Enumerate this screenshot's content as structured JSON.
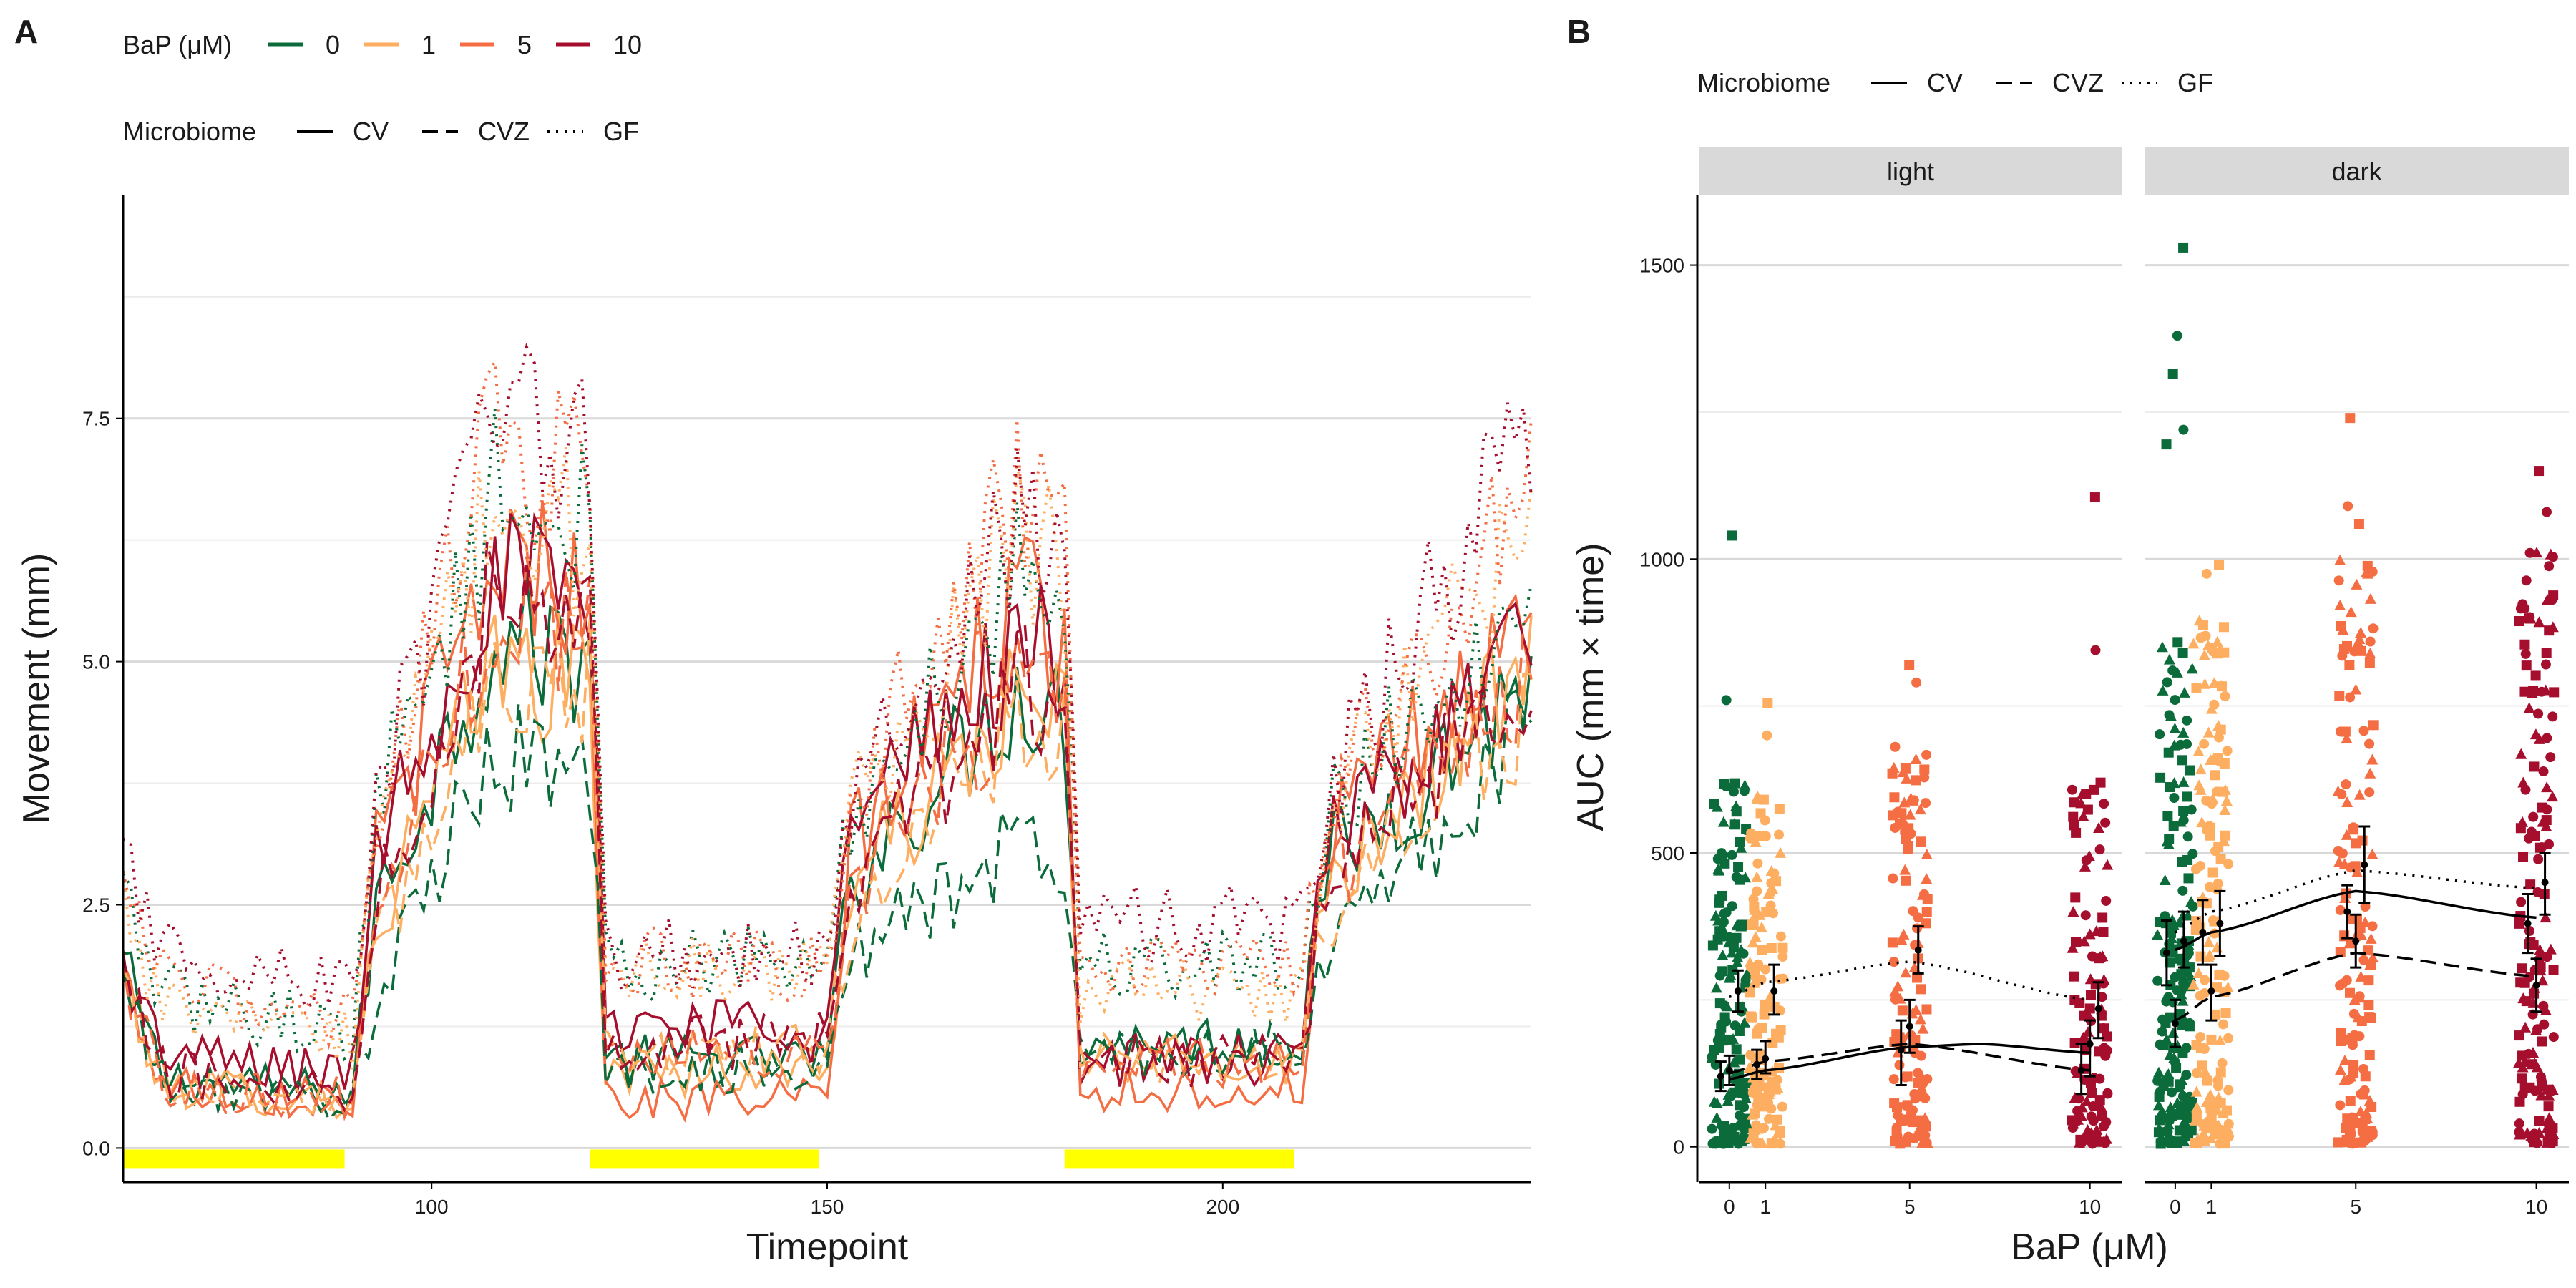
{
  "chart_data": [
    {
      "panel_label": "A",
      "type": "line",
      "xlabel": "Timepoint",
      "ylabel": "Movement (mm)",
      "xlim": [
        61,
        239
      ],
      "ylim": [
        -0.35,
        9.8
      ],
      "x_ticks": [
        100,
        150,
        200
      ],
      "y_ticks": [
        0.0,
        2.5,
        5.0,
        7.5
      ],
      "y_tick_labels": [
        "0.0",
        "2.5",
        "5.0",
        "7.5"
      ],
      "grid": "horizontal major and minor",
      "legend_position": "top-left",
      "legend": {
        "color_title": "BaP (μM)",
        "color_entries": [
          {
            "label": "0",
            "color": "#0b6b3a"
          },
          {
            "label": "1",
            "color": "#fdae61"
          },
          {
            "label": "5",
            "color": "#f46d43"
          },
          {
            "label": "10",
            "color": "#a50f2d"
          }
        ],
        "linetype_title": "Microbiome",
        "linetype_entries": [
          {
            "label": "CV",
            "dash": "solid"
          },
          {
            "label": "CVZ",
            "dash": "dashed"
          },
          {
            "label": "GF",
            "dash": "dotted"
          }
        ]
      },
      "light_periods": [
        [
          61,
          89
        ],
        [
          120,
          149
        ],
        [
          180,
          209
        ]
      ],
      "light_bar_color": "#ffff00",
      "phase_means": {
        "comment_free_note": "",
        "boundaries": [
          61,
          90,
          93,
          120,
          122,
          150,
          153,
          180,
          182,
          210,
          213,
          239
        ],
        "series": [
          {
            "name": "CV",
            "bap": "0",
            "levels": [
              1.9,
              0.55,
              2.5,
              5.3,
              0.9,
              2.8,
              4.7,
              1.1,
              2.9,
              4.8
            ]
          },
          {
            "name": "CV",
            "bap": "1",
            "levels": [
              1.8,
              0.5,
              2.3,
              5.0,
              0.8,
              2.7,
              4.6,
              0.9,
              2.8,
              4.9
            ]
          },
          {
            "name": "CV",
            "bap": "5",
            "levels": [
              1.8,
              0.5,
              3.0,
              6.1,
              0.5,
              3.1,
              5.6,
              0.6,
              3.2,
              5.4
            ]
          },
          {
            "name": "CV",
            "bap": "10",
            "levels": [
              1.9,
              0.75,
              3.2,
              5.9,
              1.3,
              3.3,
              5.2,
              0.9,
              3.2,
              5.2
            ]
          },
          {
            "name": "CVZ",
            "bap": "0",
            "levels": [
              1.7,
              0.5,
              1.5,
              4.1,
              0.8,
              2.0,
              3.1,
              1.0,
              2.0,
              4.3
            ]
          },
          {
            "name": "CVZ",
            "bap": "1",
            "levels": [
              1.7,
              0.5,
              2.0,
              5.0,
              1.0,
              2.4,
              4.4,
              0.9,
              2.4,
              4.5
            ]
          },
          {
            "name": "CVZ",
            "bap": "5",
            "levels": [
              1.8,
              0.5,
              2.4,
              5.6,
              1.0,
              2.6,
              4.8,
              0.9,
              2.8,
              4.8
            ]
          },
          {
            "name": "CVZ",
            "bap": "10",
            "levels": [
              1.8,
              0.6,
              2.6,
              5.8,
              1.1,
              2.7,
              4.8,
              0.9,
              2.8,
              4.9
            ]
          },
          {
            "name": "GF",
            "bap": "0",
            "levels": [
              2.6,
              1.2,
              3.5,
              6.7,
              1.9,
              3.4,
              6.0,
              1.9,
              3.4,
              5.9
            ]
          },
          {
            "name": "GF",
            "bap": "1",
            "levels": [
              2.6,
              1.1,
              3.2,
              6.6,
              1.8,
              3.4,
              6.3,
              1.6,
              3.4,
              6.5
            ]
          },
          {
            "name": "GF",
            "bap": "5",
            "levels": [
              2.6,
              1.3,
              3.5,
              7.3,
              1.9,
              3.6,
              6.7,
              1.8,
              3.6,
              6.8
            ]
          },
          {
            "name": "GF",
            "bap": "10",
            "levels": [
              2.9,
              1.6,
              3.6,
              7.5,
              2.0,
              3.5,
              6.4,
              2.3,
              3.6,
              7.5
            ]
          }
        ]
      }
    },
    {
      "panel_label": "B",
      "type": "scatter",
      "xlabel": "BaP (μM)",
      "ylabel": "AUC (mm × time)",
      "facets": [
        "light",
        "dark"
      ],
      "x_ticks": [
        0,
        1,
        5,
        10
      ],
      "x_tick_labels": [
        "0",
        "1",
        "5",
        "10"
      ],
      "y_ticks": [
        0,
        500,
        1000,
        1500
      ],
      "y_tick_labels": [
        "0",
        "500",
        "1000",
        "1500"
      ],
      "ylim": [
        -60,
        1620
      ],
      "grid": "horizontal major and minor",
      "legend_position": "top",
      "legend": {
        "linetype_title": "Microbiome",
        "linetype_entries": [
          {
            "label": "CV",
            "dash": "solid"
          },
          {
            "label": "CVZ",
            "dash": "dashed"
          },
          {
            "label": "GF",
            "dash": "dotted"
          }
        ]
      },
      "point_colors": {
        "0": "#0b6b3a",
        "1": "#fdae61",
        "5": "#f46d43",
        "10": "#a50f2d"
      },
      "point_shapes": {
        "CV": "circle",
        "CVZ": "triangle",
        "GF": "square"
      },
      "fits": {
        "light": {
          "CV": [
            [
              0,
              115
            ],
            [
              1,
              130
            ],
            [
              5,
              170
            ],
            [
              7,
              175
            ],
            [
              10,
              160
            ]
          ],
          "CVZ": [
            [
              0,
              125
            ],
            [
              1,
              145
            ],
            [
              5,
              175
            ],
            [
              10,
              130
            ]
          ],
          "GF": [
            [
              0,
              255
            ],
            [
              1,
              280
            ],
            [
              5,
              315
            ],
            [
              10,
              250
            ]
          ]
        },
        "dark": {
          "CV": [
            [
              0,
              335
            ],
            [
              1,
              365
            ],
            [
              5,
              435
            ],
            [
              10,
              390
            ]
          ],
          "CVZ": [
            [
              0,
              215
            ],
            [
              1,
              255
            ],
            [
              5,
              330
            ],
            [
              10,
              290
            ]
          ],
          "GF": [
            [
              0,
              365
            ],
            [
              1,
              400
            ],
            [
              5,
              470
            ],
            [
              10,
              440
            ]
          ]
        }
      },
      "means": {
        "light": [
          {
            "bap": 0,
            "group": "CV",
            "mean": 120,
            "lo": 95,
            "hi": 145
          },
          {
            "bap": 0,
            "group": "CVZ",
            "mean": 130,
            "lo": 105,
            "hi": 155
          },
          {
            "bap": 0,
            "group": "GF",
            "mean": 265,
            "lo": 230,
            "hi": 300
          },
          {
            "bap": 1,
            "group": "CV",
            "mean": 140,
            "lo": 115,
            "hi": 165
          },
          {
            "bap": 1,
            "group": "CVZ",
            "mean": 150,
            "lo": 125,
            "hi": 180
          },
          {
            "bap": 1,
            "group": "GF",
            "mean": 265,
            "lo": 225,
            "hi": 310
          },
          {
            "bap": 5,
            "group": "CV",
            "mean": 165,
            "lo": 105,
            "hi": 215
          },
          {
            "bap": 5,
            "group": "CVZ",
            "mean": 205,
            "lo": 160,
            "hi": 250
          },
          {
            "bap": 5,
            "group": "GF",
            "mean": 335,
            "lo": 295,
            "hi": 375
          },
          {
            "bap": 10,
            "group": "CV",
            "mean": 130,
            "lo": 90,
            "hi": 175
          },
          {
            "bap": 10,
            "group": "CVZ",
            "mean": 175,
            "lo": 120,
            "hi": 215
          },
          {
            "bap": 10,
            "group": "GF",
            "mean": 235,
            "lo": 185,
            "hi": 280
          }
        ],
        "dark": [
          {
            "bap": 0,
            "group": "CV",
            "mean": 330,
            "lo": 275,
            "hi": 385
          },
          {
            "bap": 0,
            "group": "CVZ",
            "mean": 210,
            "lo": 170,
            "hi": 250
          },
          {
            "bap": 0,
            "group": "GF",
            "mean": 350,
            "lo": 305,
            "hi": 400
          },
          {
            "bap": 1,
            "group": "CV",
            "mean": 365,
            "lo": 310,
            "hi": 420
          },
          {
            "bap": 1,
            "group": "CVZ",
            "mean": 265,
            "lo": 215,
            "hi": 310
          },
          {
            "bap": 1,
            "group": "GF",
            "mean": 380,
            "lo": 325,
            "hi": 435
          },
          {
            "bap": 5,
            "group": "CV",
            "mean": 400,
            "lo": 355,
            "hi": 445
          },
          {
            "bap": 5,
            "group": "CVZ",
            "mean": 350,
            "lo": 305,
            "hi": 395
          },
          {
            "bap": 5,
            "group": "GF",
            "mean": 480,
            "lo": 415,
            "hi": 545
          },
          {
            "bap": 10,
            "group": "CV",
            "mean": 380,
            "lo": 330,
            "hi": 430
          },
          {
            "bap": 10,
            "group": "CVZ",
            "mean": 275,
            "lo": 230,
            "hi": 320
          },
          {
            "bap": 10,
            "group": "GF",
            "mean": 450,
            "lo": 395,
            "hi": 500
          }
        ]
      },
      "point_summary": {
        "light": {
          "0": {
            "n": 150,
            "range": [
              5,
              620
            ],
            "high": [
              1040,
              760
            ]
          },
          "1": {
            "n": 130,
            "range": [
              5,
              600
            ],
            "high": [
              755,
              700
            ]
          },
          "5": {
            "n": 130,
            "range": [
              5,
              700
            ],
            "high": [
              820,
              790
            ]
          },
          "10": {
            "n": 110,
            "range": [
              5,
              650
            ],
            "high": [
              1105,
              845
            ]
          }
        },
        "dark": {
          "0": {
            "n": 170,
            "range": [
              5,
              860
            ],
            "high": [
              1530,
              1380,
              1315,
              1220,
              1195
            ]
          },
          "1": {
            "n": 150,
            "range": [
              5,
              900
            ],
            "high": [
              990,
              975
            ]
          },
          "5": {
            "n": 150,
            "range": [
              5,
              1000
            ],
            "high": [
              1240,
              1090,
              1060
            ]
          },
          "10": {
            "n": 150,
            "range": [
              5,
              1020
            ],
            "high": [
              1150,
              1080
            ]
          }
        }
      }
    }
  ]
}
